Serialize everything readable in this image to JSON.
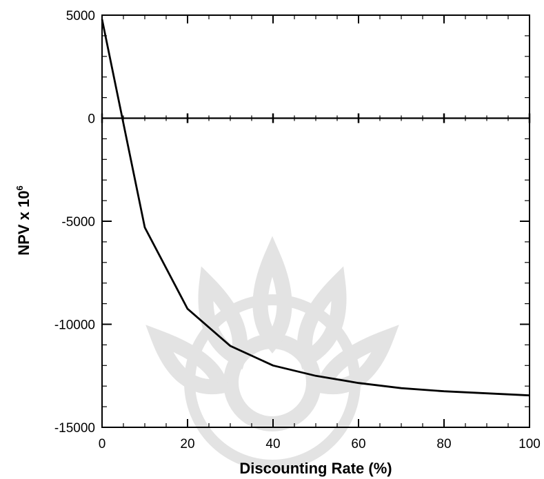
{
  "chart_data": {
    "type": "line",
    "title": "",
    "xlabel": "Discounting Rate (%)",
    "ylabel": {
      "text": "NPV x 10",
      "superscript": "6"
    },
    "xlim": [
      0,
      100
    ],
    "ylim": [
      -15000,
      5000
    ],
    "x_ticks": [
      "0",
      "20",
      "40",
      "60",
      "80",
      "100"
    ],
    "y_ticks": [
      "5000",
      "0",
      "-5000",
      "-10000",
      "-15000"
    ],
    "grid": false,
    "legend": "none",
    "series": [
      {
        "x": [
          0,
          10,
          20,
          30,
          40,
          50,
          60,
          70,
          80,
          90,
          100
        ],
        "y": [
          4800,
          -5300,
          -9250,
          -11050,
          -12000,
          -12500,
          -12850,
          -13100,
          -13250,
          -13350,
          -13450
        ]
      }
    ],
    "colors": {
      "line": "#000000",
      "axis": "#000000",
      "watermark": "#d9d9d9"
    }
  }
}
